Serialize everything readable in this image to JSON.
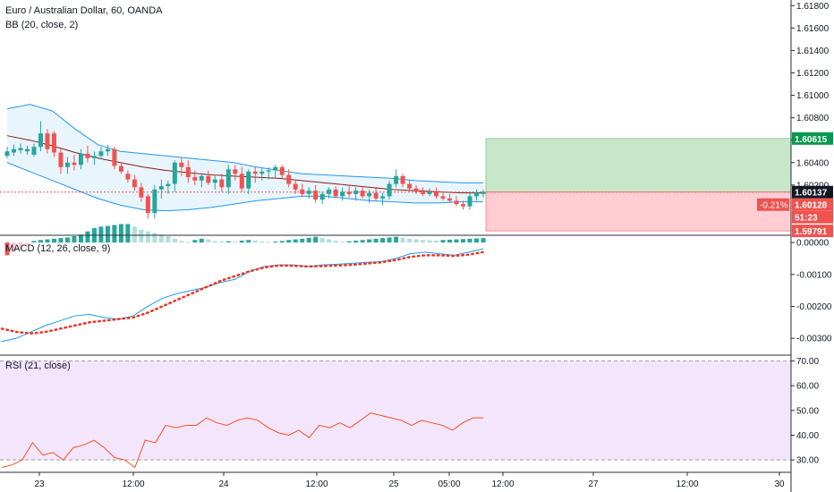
{
  "chart_data": {
    "type": "candlestick",
    "title": "Euro / Australian Dollar, 60, OANDA",
    "indicator_bb": "BB (20, close, 2)",
    "colors": {
      "up": "#26a69a",
      "down": "#ef5350",
      "bb_line": "#2196f3",
      "bb_fill": "#e3f2fd",
      "ma": "#8b1a1a",
      "rsi_line": "#f4511e",
      "rsi_fill": "#f3e5fc",
      "macd_line": "#2196f3",
      "signal": "#f4311e"
    },
    "x_labels": [
      "23",
      "12:00",
      "24",
      "12:00",
      "25",
      "05:00",
      "12:00",
      "27",
      "12:00",
      "30"
    ],
    "price_axis": {
      "ticks": [
        "1.61800",
        "1.61600",
        "1.61400",
        "1.61200",
        "1.61000",
        "1.60800",
        "1.60600",
        "1.60400",
        "1.60200"
      ],
      "ylim": [
        1.5976,
        1.6185
      ]
    },
    "candles": [
      {
        "o": 1.6046,
        "h": 1.6054,
        "l": 1.6044,
        "c": 1.605
      },
      {
        "o": 1.6049,
        "h": 1.6056,
        "l": 1.6046,
        "c": 1.6052
      },
      {
        "o": 1.6051,
        "h": 1.6057,
        "l": 1.6048,
        "c": 1.6053
      },
      {
        "o": 1.605,
        "h": 1.6055,
        "l": 1.6047,
        "c": 1.6052
      },
      {
        "o": 1.6047,
        "h": 1.6057,
        "l": 1.6045,
        "c": 1.6054
      },
      {
        "o": 1.6054,
        "h": 1.6077,
        "l": 1.605,
        "c": 1.6066
      },
      {
        "o": 1.6066,
        "h": 1.607,
        "l": 1.6048,
        "c": 1.6052
      },
      {
        "o": 1.6066,
        "h": 1.6068,
        "l": 1.6045,
        "c": 1.6049
      },
      {
        "o": 1.6049,
        "h": 1.6053,
        "l": 1.603,
        "c": 1.6036
      },
      {
        "o": 1.6036,
        "h": 1.6045,
        "l": 1.603,
        "c": 1.604
      },
      {
        "o": 1.604,
        "h": 1.6047,
        "l": 1.6033,
        "c": 1.6038
      },
      {
        "o": 1.6038,
        "h": 1.6052,
        "l": 1.6034,
        "c": 1.6048
      },
      {
        "o": 1.6048,
        "h": 1.6055,
        "l": 1.604,
        "c": 1.6044
      },
      {
        "o": 1.6044,
        "h": 1.605,
        "l": 1.6038,
        "c": 1.6046
      },
      {
        "o": 1.6046,
        "h": 1.6054,
        "l": 1.6043,
        "c": 1.605
      },
      {
        "o": 1.605,
        "h": 1.6056,
        "l": 1.6046,
        "c": 1.6052
      },
      {
        "o": 1.6052,
        "h": 1.6054,
        "l": 1.6034,
        "c": 1.6037
      },
      {
        "o": 1.6037,
        "h": 1.604,
        "l": 1.603,
        "c": 1.6032
      },
      {
        "o": 1.603,
        "h": 1.6033,
        "l": 1.6022,
        "c": 1.6025
      },
      {
        "o": 1.6025,
        "h": 1.6029,
        "l": 1.6015,
        "c": 1.6018
      },
      {
        "o": 1.6018,
        "h": 1.6022,
        "l": 1.6005,
        "c": 1.6009
      },
      {
        "o": 1.601,
        "h": 1.6012,
        "l": 1.599,
        "c": 1.5995
      },
      {
        "o": 1.5995,
        "h": 1.602,
        "l": 1.599,
        "c": 1.6016
      },
      {
        "o": 1.6016,
        "h": 1.6025,
        "l": 1.6008,
        "c": 1.6019
      },
      {
        "o": 1.6019,
        "h": 1.6024,
        "l": 1.6012,
        "c": 1.6021
      },
      {
        "o": 1.6021,
        "h": 1.6042,
        "l": 1.6014,
        "c": 1.604
      },
      {
        "o": 1.604,
        "h": 1.6045,
        "l": 1.6028,
        "c": 1.6036
      },
      {
        "o": 1.6036,
        "h": 1.6042,
        "l": 1.6022,
        "c": 1.6027
      },
      {
        "o": 1.6027,
        "h": 1.6033,
        "l": 1.602,
        "c": 1.6024
      },
      {
        "o": 1.6024,
        "h": 1.603,
        "l": 1.6018,
        "c": 1.6028
      },
      {
        "o": 1.6028,
        "h": 1.6033,
        "l": 1.602,
        "c": 1.6022
      },
      {
        "o": 1.6022,
        "h": 1.6028,
        "l": 1.6016,
        "c": 1.6025
      },
      {
        "o": 1.6025,
        "h": 1.603,
        "l": 1.6014,
        "c": 1.6018
      },
      {
        "o": 1.6018,
        "h": 1.6038,
        "l": 1.6012,
        "c": 1.6034
      },
      {
        "o": 1.6034,
        "h": 1.6038,
        "l": 1.6024,
        "c": 1.603
      },
      {
        "o": 1.603,
        "h": 1.6036,
        "l": 1.6014,
        "c": 1.6017
      },
      {
        "o": 1.6017,
        "h": 1.6034,
        "l": 1.6012,
        "c": 1.6032
      },
      {
        "o": 1.6032,
        "h": 1.6036,
        "l": 1.6022,
        "c": 1.603
      },
      {
        "o": 1.603,
        "h": 1.6035,
        "l": 1.6024,
        "c": 1.6032
      },
      {
        "o": 1.6032,
        "h": 1.6036,
        "l": 1.6025,
        "c": 1.6033
      },
      {
        "o": 1.6033,
        "h": 1.6038,
        "l": 1.6026,
        "c": 1.6036
      },
      {
        "o": 1.6036,
        "h": 1.6038,
        "l": 1.6026,
        "c": 1.6029
      },
      {
        "o": 1.6029,
        "h": 1.6034,
        "l": 1.6018,
        "c": 1.6021
      },
      {
        "o": 1.6021,
        "h": 1.6024,
        "l": 1.6012,
        "c": 1.6016
      },
      {
        "o": 1.6016,
        "h": 1.6021,
        "l": 1.601,
        "c": 1.6012
      },
      {
        "o": 1.6012,
        "h": 1.6018,
        "l": 1.6008,
        "c": 1.6015
      },
      {
        "o": 1.6015,
        "h": 1.602,
        "l": 1.6004,
        "c": 1.6007
      },
      {
        "o": 1.6007,
        "h": 1.6014,
        "l": 1.6003,
        "c": 1.6012
      },
      {
        "o": 1.6012,
        "h": 1.6018,
        "l": 1.6008,
        "c": 1.6016
      },
      {
        "o": 1.6016,
        "h": 1.6019,
        "l": 1.6008,
        "c": 1.601
      },
      {
        "o": 1.601,
        "h": 1.6018,
        "l": 1.6006,
        "c": 1.6014
      },
      {
        "o": 1.6014,
        "h": 1.602,
        "l": 1.6009,
        "c": 1.6012
      },
      {
        "o": 1.6012,
        "h": 1.6018,
        "l": 1.6006,
        "c": 1.6015
      },
      {
        "o": 1.6015,
        "h": 1.6019,
        "l": 1.6008,
        "c": 1.601
      },
      {
        "o": 1.601,
        "h": 1.6016,
        "l": 1.6004,
        "c": 1.6013
      },
      {
        "o": 1.6013,
        "h": 1.6017,
        "l": 1.6006,
        "c": 1.6008
      },
      {
        "o": 1.6008,
        "h": 1.6013,
        "l": 1.6002,
        "c": 1.601
      },
      {
        "o": 1.601,
        "h": 1.6024,
        "l": 1.6007,
        "c": 1.6021
      },
      {
        "o": 1.6021,
        "h": 1.6034,
        "l": 1.6018,
        "c": 1.6028
      },
      {
        "o": 1.6028,
        "h": 1.603,
        "l": 1.6018,
        "c": 1.6021
      },
      {
        "o": 1.6021,
        "h": 1.6024,
        "l": 1.6014,
        "c": 1.6017
      },
      {
        "o": 1.6017,
        "h": 1.602,
        "l": 1.6012,
        "c": 1.6014
      },
      {
        "o": 1.6014,
        "h": 1.6018,
        "l": 1.601,
        "c": 1.6012
      },
      {
        "o": 1.6012,
        "h": 1.6017,
        "l": 1.601,
        "c": 1.6014
      },
      {
        "o": 1.6014,
        "h": 1.6018,
        "l": 1.6008,
        "c": 1.601
      },
      {
        "o": 1.601,
        "h": 1.6013,
        "l": 1.6006,
        "c": 1.6008
      },
      {
        "o": 1.6008,
        "h": 1.6012,
        "l": 1.6004,
        "c": 1.6006
      },
      {
        "o": 1.6006,
        "h": 1.601,
        "l": 1.6001,
        "c": 1.6003
      },
      {
        "o": 1.6003,
        "h": 1.6006,
        "l": 1.5998,
        "c": 1.6001
      },
      {
        "o": 1.6001,
        "h": 1.6013,
        "l": 1.5998,
        "c": 1.601
      },
      {
        "o": 1.601,
        "h": 1.6016,
        "l": 1.6006,
        "c": 1.6013
      },
      {
        "o": 1.6012,
        "h": 1.6016,
        "l": 1.6009,
        "c": 1.6014
      }
    ],
    "bb_upper": [
      1.6088,
      1.6092,
      1.6086,
      1.607,
      1.6056,
      1.605,
      1.6048,
      1.6046,
      1.6044,
      1.6042,
      1.604,
      1.6036,
      1.6033,
      1.603,
      1.6029,
      1.6028,
      1.6027,
      1.6026,
      1.6024,
      1.6023,
      1.6022,
      1.6022
    ],
    "bb_middle": [
      1.6064,
      1.606,
      1.6055,
      1.6049,
      1.6044,
      1.604,
      1.6036,
      1.6033,
      1.6031,
      1.6029,
      1.6028,
      1.6027,
      1.6026,
      1.6024,
      1.6022,
      1.602,
      1.6018,
      1.6016,
      1.6015,
      1.6014,
      1.6013,
      1.6013
    ],
    "bb_lower": [
      1.604,
      1.6032,
      1.6024,
      1.6016,
      1.6008,
      1.6002,
      1.5998,
      1.5997,
      1.5998,
      1.6,
      1.6003,
      1.6006,
      1.6008,
      1.601,
      1.601,
      1.6008,
      1.6006,
      1.6005,
      1.6004,
      1.6004,
      1.6005,
      1.6005
    ],
    "position": {
      "entry": 1.60137,
      "take_profit": 1.60615,
      "stop": 1.59791
    },
    "price_labels": {
      "take_profit": "1.60615",
      "last": "1.60137",
      "current": "1.60128",
      "change": "-0.21%",
      "countdown": "51:23",
      "stop": "1.59791"
    },
    "macd": {
      "title": "MACD (12, 26, close, 9)",
      "ticks": [
        "0.00000",
        "-0.00100",
        "-0.00200",
        "-0.00300"
      ],
      "ylim": [
        -0.0035,
        0.0002
      ],
      "macd": [
        -0.0031,
        -0.003,
        -0.0028,
        -0.0026,
        -0.00245,
        -0.0023,
        -0.00225,
        -0.00235,
        -0.0024,
        -0.0023,
        -0.002,
        -0.00175,
        -0.0016,
        -0.0015,
        -0.0014,
        -0.00125,
        -0.00115,
        -0.0009,
        -0.00075,
        -0.0007,
        -0.0007,
        -0.00075,
        -0.0007,
        -0.00068,
        -0.00065,
        -0.00062,
        -0.0006,
        -0.0005,
        -0.00035,
        -0.0003,
        -0.00035,
        -0.0004,
        -0.0003,
        -0.0002
      ],
      "signal": [
        -0.0027,
        -0.0028,
        -0.00285,
        -0.0028,
        -0.0027,
        -0.0026,
        -0.0025,
        -0.00245,
        -0.0024,
        -0.00235,
        -0.0022,
        -0.002,
        -0.0018,
        -0.0016,
        -0.0014,
        -0.0012,
        -0.00105,
        -0.0009,
        -0.00078,
        -0.00072,
        -0.00073,
        -0.00075,
        -0.00074,
        -0.00072,
        -0.0007,
        -0.00066,
        -0.00062,
        -0.00055,
        -0.00045,
        -0.0004,
        -0.0004,
        -0.00042,
        -0.00038,
        -0.0003
      ],
      "histogram": [
        -0.0004,
        -0.0003,
        -0.0002,
        -0.0001,
        5e-05,
        8e-05,
        0.0001,
        0.00012,
        0.00014,
        0.00016,
        0.0002,
        0.00025,
        0.00035,
        0.00045,
        0.0005,
        0.00052,
        0.00055,
        0.00058,
        0.00058,
        0.0005,
        0.0004,
        0.00035,
        0.0003,
        0.00025,
        0.0002,
        0.00012,
        5e-05,
        2e-05,
        8e-05,
        0.00012,
        0.0001,
        5e-05,
        4e-05,
        4e-05,
        3e-05,
        6e-05,
        8e-05,
        6e-05,
        4e-05,
        2e-05,
        3e-05,
        5e-05,
        8e-05,
        0.0001,
        0.00012,
        0.00015,
        0.00018,
        0.00015,
        0.0001,
        6e-05,
        3e-05,
        4e-05,
        6e-05,
        8e-05,
        0.0001,
        0.00012,
        0.00014,
        0.00016,
        0.00018,
        0.00015,
        0.00012,
        0.0001,
        8e-05,
        7e-05,
        6e-05,
        8e-05,
        9e-05,
        0.0001,
        0.00011,
        0.00012,
        0.00013,
        0.00014
      ]
    },
    "rsi": {
      "title": "RSI (21, close)",
      "ticks": [
        "70.00",
        "60.00",
        "50.00",
        "40.00",
        "30.00"
      ],
      "ylim": [
        25,
        72
      ],
      "bands": [
        70,
        30
      ],
      "values": [
        27,
        28,
        30,
        37,
        32,
        33,
        30,
        35,
        36,
        38,
        35,
        31,
        30,
        27,
        38,
        37,
        44,
        43,
        44,
        44,
        47,
        45,
        44,
        46,
        47,
        46,
        43,
        41,
        40,
        42,
        39,
        44,
        43,
        45,
        43,
        46,
        49,
        48,
        47,
        46,
        44,
        46,
        45,
        44,
        42,
        45,
        47,
        47
      ]
    }
  }
}
